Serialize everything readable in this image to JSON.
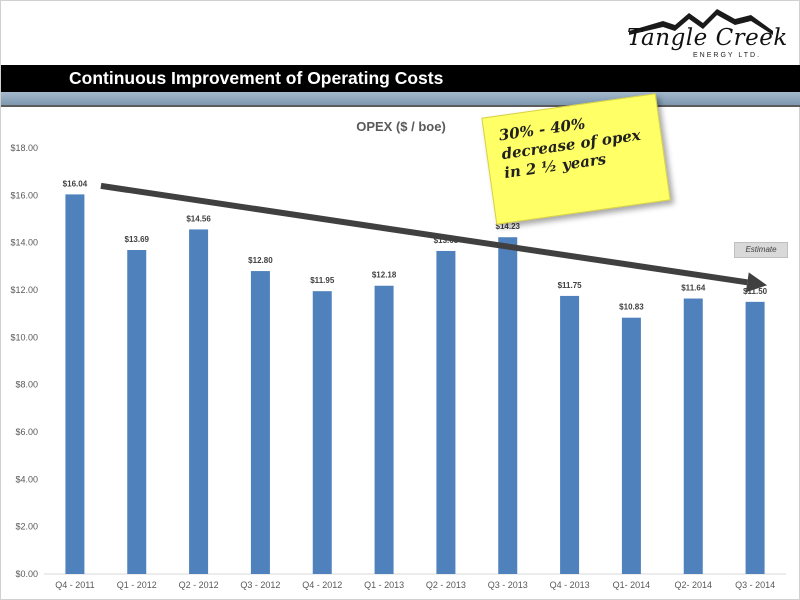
{
  "slide": {
    "title": "Continuous Improvement of Operating Costs"
  },
  "logo": {
    "name": "Tangle Creek",
    "tagline": "ENERGY LTD."
  },
  "annotation": {
    "note_text": "30% - 40% decrease of opex in 2 ½ years",
    "estimate_label": "Estimate"
  },
  "colors": {
    "bar": "#4f81bd",
    "arrow": "#404040",
    "title_bar": "#000000",
    "accent_bar": "#8ea6bc",
    "sticky_note": "#ffff66"
  },
  "chart_data": {
    "type": "bar",
    "title": "OPEX ($ / boe)",
    "xlabel": "",
    "ylabel": "",
    "categories": [
      "Q4 - 2011",
      "Q1 - 2012",
      "Q2 - 2012",
      "Q3 - 2012",
      "Q4 - 2012",
      "Q1 - 2013",
      "Q2 - 2013",
      "Q3 - 2013",
      "Q4 - 2013",
      "Q1- 2014",
      "Q2- 2014",
      "Q3 - 2014"
    ],
    "values": [
      16.04,
      13.69,
      14.56,
      12.8,
      11.95,
      12.18,
      13.65,
      14.23,
      11.75,
      10.83,
      11.64,
      11.5
    ],
    "value_labels": [
      "$16.04",
      "$13.69",
      "$14.56",
      "$12.80",
      "$11.95",
      "$12.18",
      "$13.65",
      "$14.23",
      "$11.75",
      "$10.83",
      "$11.64",
      "$11.50"
    ],
    "ylim": [
      0,
      18
    ],
    "yticks": [
      0,
      2,
      4,
      6,
      8,
      10,
      12,
      14,
      16,
      18
    ],
    "ytick_labels": [
      "$0.00",
      "$2.00",
      "$4.00",
      "$6.00",
      "$8.00",
      "$10.00",
      "$12.00",
      "$14.00",
      "$16.00",
      "$18.00"
    ],
    "grid": false,
    "legend": "none",
    "trend": {
      "from_value": 16.4,
      "to_value": 12.2
    },
    "estimate_category": "Q3 - 2014"
  }
}
